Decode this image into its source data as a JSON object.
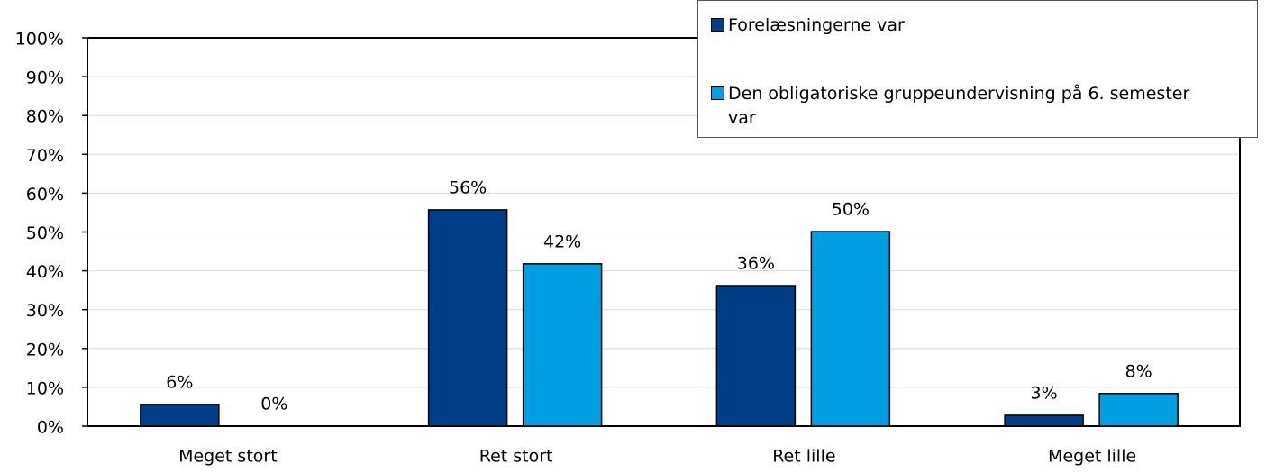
{
  "chart_data": {
    "type": "bar",
    "categories": [
      "Meget stort",
      "Ret stort",
      "Ret lille",
      "Meget lille"
    ],
    "series": [
      {
        "name": "Forelæsningerne var",
        "color": "#003f87",
        "values": [
          5.6,
          55.7,
          36.2,
          2.8
        ],
        "value_labels": [
          "6%",
          "56%",
          "36%",
          "3%"
        ]
      },
      {
        "name": "Den obligatoriske gruppeundervisning på 6. semester var",
        "color": "#009fe3",
        "values": [
          0,
          41.8,
          50.1,
          8.4
        ],
        "value_labels": [
          "0%",
          "42%",
          "50%",
          "8%"
        ]
      }
    ],
    "ylim": [
      0,
      100
    ],
    "yticks": [
      {
        "value": 0,
        "label": "0%"
      },
      {
        "value": 10,
        "label": "10%"
      },
      {
        "value": 20,
        "label": "20%"
      },
      {
        "value": 30,
        "label": "30%"
      },
      {
        "value": 40,
        "label": "40%"
      },
      {
        "value": 50,
        "label": "50%"
      },
      {
        "value": 60,
        "label": "60%"
      },
      {
        "value": 70,
        "label": "70%"
      },
      {
        "value": 80,
        "label": "80%"
      },
      {
        "value": 90,
        "label": "90%"
      },
      {
        "value": 100,
        "label": "100%"
      }
    ],
    "grid": true
  }
}
